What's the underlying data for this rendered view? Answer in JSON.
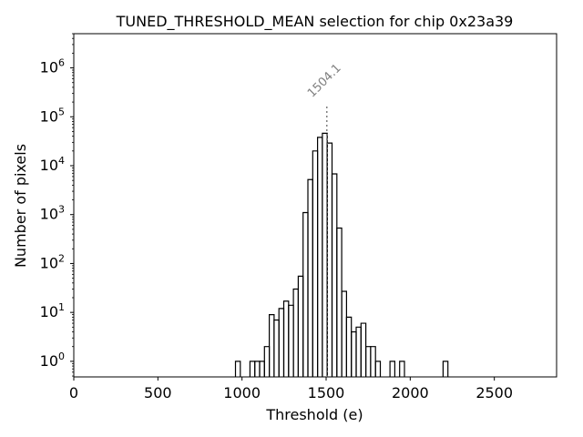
{
  "chart_data": {
    "type": "histogram",
    "title": "TUNED_THRESHOLD_MEAN selection for chip 0x23a39",
    "xlabel": "Threshold (e)",
    "ylabel": "Number of pixels",
    "xlim": [
      0,
      2870
    ],
    "ylim_log": [
      0.48,
      5000000
    ],
    "yscale": "log",
    "xticks": [
      0,
      500,
      1000,
      1500,
      2000,
      2500
    ],
    "xtick_labels": [
      "0",
      "500",
      "1000",
      "1500",
      "2000",
      "2500"
    ],
    "yticks": [
      1,
      10,
      100,
      1000,
      10000,
      100000,
      1000000
    ],
    "ytick_base": "10",
    "ytick_exponents": [
      "0",
      "1",
      "2",
      "3",
      "4",
      "5",
      "6"
    ],
    "bin_width": 28.7,
    "bins": [
      {
        "x0": 961.2,
        "count": 1
      },
      {
        "x0": 1047.3,
        "count": 1
      },
      {
        "x0": 1076.0,
        "count": 1
      },
      {
        "x0": 1104.7,
        "count": 1
      },
      {
        "x0": 1133.4,
        "count": 2
      },
      {
        "x0": 1162.1,
        "count": 9
      },
      {
        "x0": 1190.8,
        "count": 7
      },
      {
        "x0": 1219.5,
        "count": 12
      },
      {
        "x0": 1248.2,
        "count": 17
      },
      {
        "x0": 1276.9,
        "count": 14
      },
      {
        "x0": 1305.6,
        "count": 30
      },
      {
        "x0": 1334.3,
        "count": 55
      },
      {
        "x0": 1363.0,
        "count": 1100
      },
      {
        "x0": 1391.7,
        "count": 5200
      },
      {
        "x0": 1420.4,
        "count": 20000
      },
      {
        "x0": 1449.1,
        "count": 38000
      },
      {
        "x0": 1477.8,
        "count": 46000
      },
      {
        "x0": 1506.5,
        "count": 29000
      },
      {
        "x0": 1535.2,
        "count": 6800
      },
      {
        "x0": 1563.9,
        "count": 530
      },
      {
        "x0": 1592.6,
        "count": 27
      },
      {
        "x0": 1621.3,
        "count": 8
      },
      {
        "x0": 1650.0,
        "count": 4
      },
      {
        "x0": 1678.7,
        "count": 5
      },
      {
        "x0": 1707.4,
        "count": 6
      },
      {
        "x0": 1736.1,
        "count": 2
      },
      {
        "x0": 1764.8,
        "count": 2
      },
      {
        "x0": 1793.5,
        "count": 1
      },
      {
        "x0": 1879.6,
        "count": 1
      },
      {
        "x0": 1937.0,
        "count": 1
      },
      {
        "x0": 2195.3,
        "count": 1
      }
    ],
    "mean_line": {
      "x": 1504.1,
      "label": "1504.1",
      "y_top": 180000
    }
  }
}
